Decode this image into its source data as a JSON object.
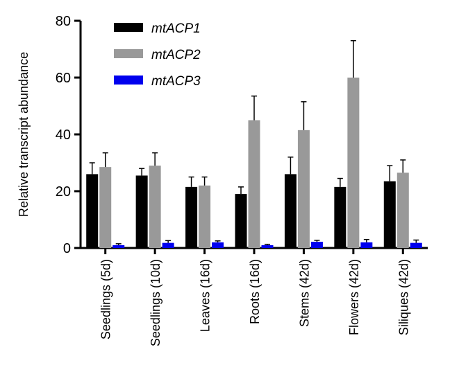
{
  "chart_data": {
    "type": "bar",
    "title": "",
    "xlabel": "",
    "ylabel": "Relative transcript abundance",
    "ylim": [
      0,
      80
    ],
    "yticks": [
      0,
      20,
      40,
      60,
      80
    ],
    "grid": false,
    "legend_position": "top-left",
    "categories": [
      "Seedlings (5d)",
      "Seedlings (10d)",
      "Leaves (16d)",
      "Roots (16d)",
      "Stems (42d)",
      "Flowers (42d)",
      "Siliques (42d)"
    ],
    "series": [
      {
        "name": "mtACP1",
        "color": "#000000",
        "values": [
          26,
          25.5,
          21.5,
          19,
          26,
          21.5,
          23.5
        ],
        "errors": [
          4,
          2.5,
          3.5,
          2.5,
          6,
          3,
          5.5
        ]
      },
      {
        "name": "mtACP2",
        "color": "#999999",
        "values": [
          28.5,
          29,
          22,
          45,
          41.5,
          60,
          26.5
        ],
        "errors": [
          5,
          4.5,
          3,
          8.5,
          10,
          13,
          4.5
        ]
      },
      {
        "name": "mtACP3",
        "color": "#0000ee",
        "values": [
          1,
          1.8,
          2,
          1,
          2.2,
          2,
          1.8
        ],
        "errors": [
          0.5,
          0.8,
          0.5,
          0.3,
          0.5,
          1,
          1
        ]
      }
    ]
  }
}
